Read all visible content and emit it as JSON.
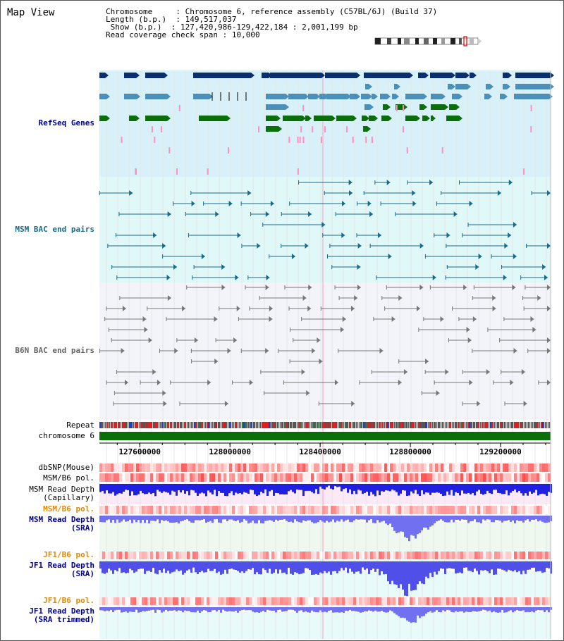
{
  "title": "Map View",
  "info": {
    "chromosome_key": "Chromosome     ",
    "chromosome": "Chromosome 6, reference assembly (C57BL/6J) (Build 37)",
    "length_key": "Length (b.p.)  ",
    "length": "149,517,037",
    "show_key": " Show (b.p.)  ",
    "show": "127,420,986-129,422,184 : 2,001,199 bp",
    "span_key": "Read coverage check span ",
    "span": "10,000"
  },
  "tracks": {
    "refseq": "RefSeq Genes",
    "msm_bac": "MSM BAC end pairs",
    "b6n_bac": "B6N BAC end pairs",
    "repeat": "Repeat",
    "chromosome": "chromosome 6",
    "dbsnp": "dbSNP(Mouse)",
    "msm_b6_pol_1": "MSM/B6 pol.",
    "msm_depth_cap_1": "MSM Read Depth",
    "msm_depth_cap_2": "(Capillary)",
    "msm_b6_pol_2": "MSM/B6 pol.",
    "msm_depth_sra_1": "MSM Read Depth",
    "msm_depth_sra_2": "(SRA)",
    "jf1_b6_pol_1": "JF1/B6 pol.",
    "jf1_depth_sra_1": "JF1 Read Depth",
    "jf1_depth_sra_2": "(SRA)",
    "jf1_b6_pol_2": "JF1/B6 pol.",
    "jf1_depth_trim_1": "JF1 Read Depth",
    "jf1_depth_trim_2": "(SRA trimmed)"
  },
  "axis": {
    "ticks": [
      127600000,
      128000000,
      128400000,
      128800000,
      129200000
    ],
    "tick_labels": [
      "127600000",
      "128000000",
      "128400000",
      "128800000",
      "129200000"
    ],
    "range": [
      127420986,
      129422184
    ]
  },
  "colors": {
    "refseq_bg": "#d8f0f8",
    "msm_bg": "#e0f8f8",
    "b6n_bg": "#f2f4fa",
    "gene_dark": "#0a2f6e",
    "gene_mid": "#4a90b8",
    "gene_green": "#0a6e0a",
    "msm_pair": "#1a6a8a",
    "b6n_pair": "#777777",
    "chrom_bar": "#0a6e0a",
    "depth_blue": "#2020e0",
    "depth_light": "#7070f0",
    "pol_red": "#f04040",
    "label_blue": "#00008b",
    "label_orange": "#e08a00"
  },
  "icons": [
    "chromosome-ideogram-icon"
  ]
}
